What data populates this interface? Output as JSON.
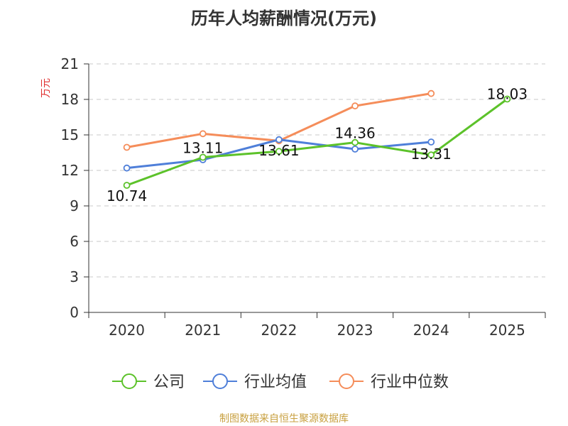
{
  "chart_data": {
    "type": "line",
    "title": "历年人均薪酬情况(万元)",
    "ylabel": "万元",
    "xlabel": "",
    "categories": [
      "2020",
      "2021",
      "2022",
      "2023",
      "2024",
      "2025"
    ],
    "ylim": [
      0,
      21
    ],
    "yticks": [
      0,
      3,
      6,
      9,
      12,
      15,
      18,
      21
    ],
    "grid": true,
    "legend_position": "bottom",
    "series": [
      {
        "name": "公司",
        "color": "#5cc22a",
        "values": [
          10.74,
          13.11,
          13.61,
          14.36,
          13.31,
          18.03
        ],
        "labels": [
          "10.74",
          "13.11",
          "13.61",
          "14.36",
          "13.31",
          "18.03"
        ]
      },
      {
        "name": "行业均值",
        "color": "#4f7fd9",
        "values": [
          12.2,
          12.9,
          14.6,
          13.8,
          14.4,
          null
        ]
      },
      {
        "name": "行业中位数",
        "color": "#f58d5a",
        "values": [
          13.95,
          15.1,
          14.5,
          17.45,
          18.5,
          null
        ]
      }
    ],
    "source": "制图数据来自恒生聚源数据库"
  }
}
